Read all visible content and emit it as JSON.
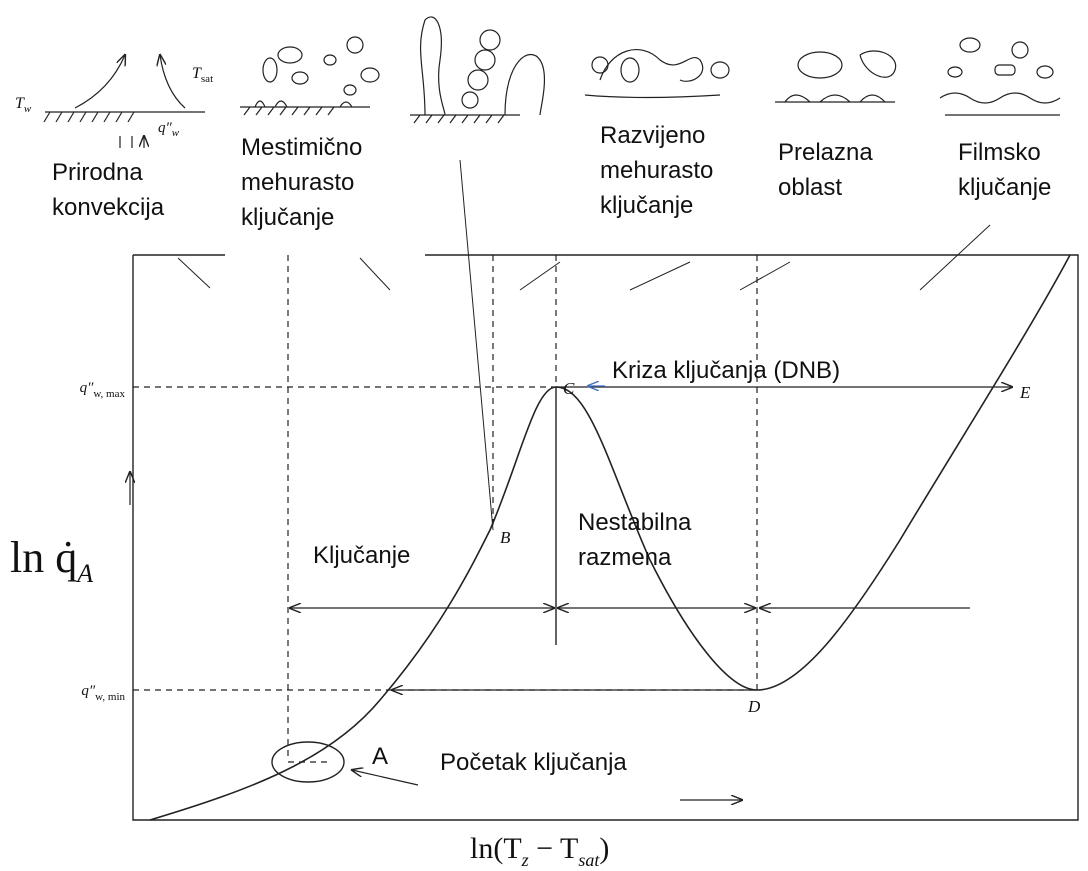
{
  "sketch_labels": {
    "t_w": {
      "main": "T",
      "sub": "w"
    },
    "t_sat": {
      "main": "T",
      "sub": "sat"
    },
    "q_w": {
      "main": "q″",
      "sub": "w"
    }
  },
  "regions": [
    {
      "lines": [
        "Prirodna",
        "konvekcija"
      ]
    },
    {
      "lines": [
        "Mestimično",
        "mehurasto",
        "ključanje"
      ]
    },
    {
      "lines": [
        "Razvijeno",
        "mehurasto",
        "ključanje"
      ]
    },
    {
      "lines": [
        "Prelazna",
        "oblast"
      ]
    },
    {
      "lines": [
        "Filmsko",
        "ključanje"
      ]
    }
  ],
  "points": [
    "A",
    "B",
    "C",
    "D",
    "E"
  ],
  "annotations": {
    "dnb": "Kriza ključanja (DNB)",
    "boiling": "Ključanje",
    "unstable": [
      "Nestabilna",
      "razmena"
    ],
    "onset": "Početak ključanja"
  },
  "y_ticks": [
    {
      "main": "q″",
      "sub": "w, max"
    },
    {
      "main": "q″",
      "sub": "w, min"
    }
  ],
  "y_axis": {
    "main": "ln q̇",
    "sub": "A"
  },
  "x_axis": {
    "main": "ln(T",
    "sub1": "z",
    "mid": " − T",
    "sub2": "sat",
    "end": ")"
  }
}
